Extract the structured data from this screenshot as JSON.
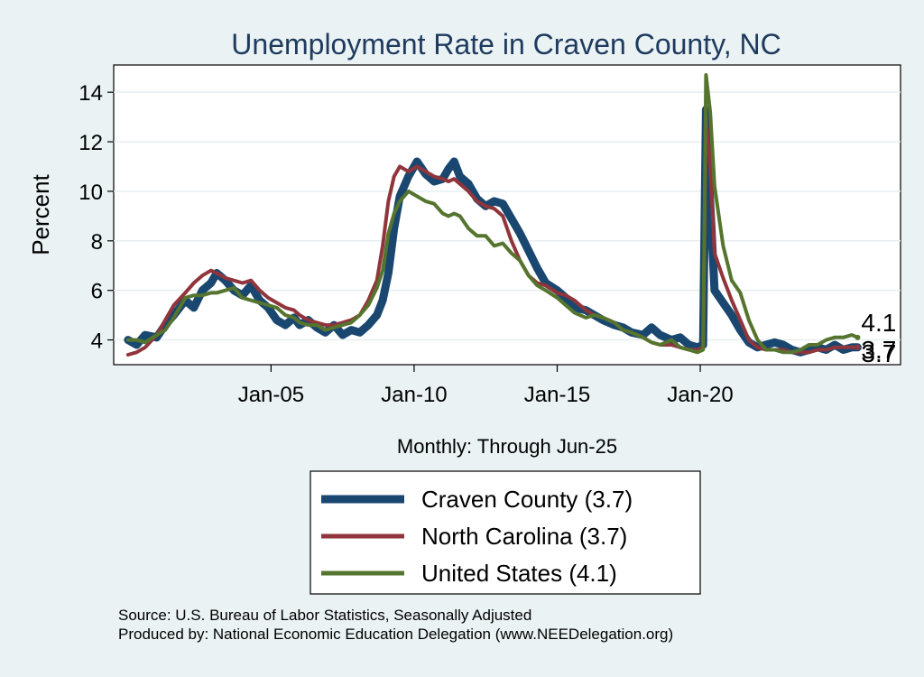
{
  "chart_data": {
    "type": "line",
    "title": "Unemployment Rate in Craven  County, NC",
    "xlabel": "Monthly: Through Jun-25",
    "ylabel": "Percent",
    "x_range": [
      2000.0,
      2025.5
    ],
    "xlim": [
      1999.5,
      2027.0
    ],
    "ylim": [
      3.0,
      15.1
    ],
    "x_ticks": [
      {
        "value": 2005,
        "label": "Jan-05"
      },
      {
        "value": 2010,
        "label": "Jan-10"
      },
      {
        "value": 2015,
        "label": "Jan-15"
      },
      {
        "value": 2020,
        "label": "Jan-20"
      }
    ],
    "y_ticks": [
      4,
      6,
      8,
      10,
      12,
      14
    ],
    "grid": true,
    "legend_position": "bottom",
    "series": [
      {
        "name": "Craven  County (3.7)",
        "color": "#1a476f",
        "width": 9,
        "end_label": "3.7",
        "points": [
          [
            2000.0,
            4.0
          ],
          [
            2000.3,
            3.8
          ],
          [
            2000.6,
            4.2
          ],
          [
            2001.0,
            4.1
          ],
          [
            2001.3,
            4.6
          ],
          [
            2001.6,
            5.0
          ],
          [
            2002.0,
            5.6
          ],
          [
            2002.3,
            5.3
          ],
          [
            2002.6,
            6.0
          ],
          [
            2002.9,
            6.3
          ],
          [
            2003.1,
            6.7
          ],
          [
            2003.4,
            6.4
          ],
          [
            2003.7,
            6.0
          ],
          [
            2004.0,
            5.8
          ],
          [
            2004.3,
            6.2
          ],
          [
            2004.6,
            5.6
          ],
          [
            2004.9,
            5.3
          ],
          [
            2005.2,
            4.8
          ],
          [
            2005.5,
            4.6
          ],
          [
            2005.8,
            4.9
          ],
          [
            2006.0,
            4.6
          ],
          [
            2006.3,
            4.8
          ],
          [
            2006.6,
            4.5
          ],
          [
            2006.9,
            4.3
          ],
          [
            2007.2,
            4.6
          ],
          [
            2007.5,
            4.2
          ],
          [
            2007.8,
            4.4
          ],
          [
            2008.1,
            4.3
          ],
          [
            2008.4,
            4.6
          ],
          [
            2008.7,
            5.0
          ],
          [
            2008.9,
            5.6
          ],
          [
            2009.1,
            6.7
          ],
          [
            2009.3,
            8.5
          ],
          [
            2009.5,
            9.8
          ],
          [
            2009.8,
            10.6
          ],
          [
            2010.1,
            11.2
          ],
          [
            2010.4,
            10.7
          ],
          [
            2010.7,
            10.4
          ],
          [
            2011.0,
            10.5
          ],
          [
            2011.2,
            10.9
          ],
          [
            2011.4,
            11.2
          ],
          [
            2011.6,
            10.6
          ],
          [
            2011.9,
            10.3
          ],
          [
            2012.2,
            9.7
          ],
          [
            2012.5,
            9.4
          ],
          [
            2012.8,
            9.6
          ],
          [
            2013.1,
            9.5
          ],
          [
            2013.4,
            8.9
          ],
          [
            2013.7,
            8.3
          ],
          [
            2014.0,
            7.6
          ],
          [
            2014.3,
            6.9
          ],
          [
            2014.6,
            6.3
          ],
          [
            2015.0,
            6.0
          ],
          [
            2015.3,
            5.7
          ],
          [
            2015.6,
            5.3
          ],
          [
            2016.0,
            5.2
          ],
          [
            2016.3,
            5.0
          ],
          [
            2016.6,
            4.8
          ],
          [
            2017.0,
            4.6
          ],
          [
            2017.3,
            4.5
          ],
          [
            2017.6,
            4.3
          ],
          [
            2018.0,
            4.2
          ],
          [
            2018.3,
            4.5
          ],
          [
            2018.6,
            4.2
          ],
          [
            2019.0,
            4.0
          ],
          [
            2019.3,
            4.1
          ],
          [
            2019.6,
            3.8
          ],
          [
            2019.9,
            3.7
          ],
          [
            2020.1,
            3.8
          ],
          [
            2020.2,
            13.3
          ],
          [
            2020.35,
            9.5
          ],
          [
            2020.5,
            6.0
          ],
          [
            2020.8,
            5.5
          ],
          [
            2021.1,
            5.0
          ],
          [
            2021.4,
            4.4
          ],
          [
            2021.7,
            3.9
          ],
          [
            2022.0,
            3.7
          ],
          [
            2022.3,
            3.8
          ],
          [
            2022.6,
            3.9
          ],
          [
            2022.9,
            3.8
          ],
          [
            2023.2,
            3.6
          ],
          [
            2023.5,
            3.5
          ],
          [
            2023.8,
            3.6
          ],
          [
            2024.1,
            3.7
          ],
          [
            2024.4,
            3.6
          ],
          [
            2024.7,
            3.8
          ],
          [
            2025.0,
            3.6
          ],
          [
            2025.3,
            3.7
          ],
          [
            2025.5,
            3.7
          ]
        ]
      },
      {
        "name": "North Carolina (3.7)",
        "color": "#90353b",
        "width": 4,
        "end_label": "3.7",
        "points": [
          [
            2000.0,
            3.4
          ],
          [
            2000.3,
            3.5
          ],
          [
            2000.6,
            3.7
          ],
          [
            2001.0,
            4.2
          ],
          [
            2001.3,
            4.8
          ],
          [
            2001.6,
            5.4
          ],
          [
            2002.0,
            5.9
          ],
          [
            2002.3,
            6.3
          ],
          [
            2002.6,
            6.6
          ],
          [
            2002.9,
            6.8
          ],
          [
            2003.1,
            6.7
          ],
          [
            2003.4,
            6.5
          ],
          [
            2003.7,
            6.4
          ],
          [
            2004.0,
            6.3
          ],
          [
            2004.3,
            6.4
          ],
          [
            2004.6,
            6.0
          ],
          [
            2004.9,
            5.7
          ],
          [
            2005.2,
            5.5
          ],
          [
            2005.5,
            5.3
          ],
          [
            2005.8,
            5.2
          ],
          [
            2006.0,
            5.0
          ],
          [
            2006.3,
            4.8
          ],
          [
            2006.6,
            4.7
          ],
          [
            2006.9,
            4.6
          ],
          [
            2007.2,
            4.6
          ],
          [
            2007.5,
            4.7
          ],
          [
            2007.8,
            4.8
          ],
          [
            2008.1,
            5.0
          ],
          [
            2008.4,
            5.6
          ],
          [
            2008.7,
            6.4
          ],
          [
            2008.9,
            7.8
          ],
          [
            2009.1,
            9.6
          ],
          [
            2009.3,
            10.6
          ],
          [
            2009.5,
            11.0
          ],
          [
            2009.8,
            10.8
          ],
          [
            2010.1,
            11.0
          ],
          [
            2010.4,
            10.8
          ],
          [
            2010.7,
            10.6
          ],
          [
            2011.0,
            10.5
          ],
          [
            2011.2,
            10.4
          ],
          [
            2011.4,
            10.5
          ],
          [
            2011.6,
            10.3
          ],
          [
            2011.9,
            10.0
          ],
          [
            2012.2,
            9.6
          ],
          [
            2012.5,
            9.4
          ],
          [
            2012.8,
            9.3
          ],
          [
            2013.1,
            9.0
          ],
          [
            2013.4,
            8.0
          ],
          [
            2013.7,
            7.2
          ],
          [
            2014.0,
            6.6
          ],
          [
            2014.3,
            6.3
          ],
          [
            2014.6,
            6.2
          ],
          [
            2015.0,
            5.9
          ],
          [
            2015.3,
            5.8
          ],
          [
            2015.6,
            5.6
          ],
          [
            2016.0,
            5.2
          ],
          [
            2016.3,
            5.0
          ],
          [
            2016.6,
            4.9
          ],
          [
            2017.0,
            4.7
          ],
          [
            2017.3,
            4.4
          ],
          [
            2017.6,
            4.3
          ],
          [
            2018.0,
            4.1
          ],
          [
            2018.3,
            3.9
          ],
          [
            2018.6,
            3.8
          ],
          [
            2019.0,
            3.8
          ],
          [
            2019.3,
            3.7
          ],
          [
            2019.6,
            3.6
          ],
          [
            2019.9,
            3.6
          ],
          [
            2020.1,
            3.7
          ],
          [
            2020.2,
            13.0
          ],
          [
            2020.35,
            11.0
          ],
          [
            2020.5,
            7.5
          ],
          [
            2020.8,
            6.5
          ],
          [
            2021.1,
            5.6
          ],
          [
            2021.4,
            4.8
          ],
          [
            2021.7,
            4.0
          ],
          [
            2022.0,
            3.7
          ],
          [
            2022.3,
            3.6
          ],
          [
            2022.6,
            3.6
          ],
          [
            2022.9,
            3.6
          ],
          [
            2023.2,
            3.5
          ],
          [
            2023.5,
            3.5
          ],
          [
            2023.8,
            3.5
          ],
          [
            2024.1,
            3.6
          ],
          [
            2024.4,
            3.6
          ],
          [
            2024.7,
            3.7
          ],
          [
            2025.0,
            3.7
          ],
          [
            2025.3,
            3.7
          ],
          [
            2025.5,
            3.7
          ]
        ]
      },
      {
        "name": "United States (4.1)",
        "color": "#55752f",
        "width": 4,
        "end_label": "4.1",
        "points": [
          [
            2000.0,
            4.0
          ],
          [
            2000.3,
            4.0
          ],
          [
            2000.6,
            3.9
          ],
          [
            2001.0,
            4.2
          ],
          [
            2001.3,
            4.4
          ],
          [
            2001.6,
            4.9
          ],
          [
            2002.0,
            5.7
          ],
          [
            2002.3,
            5.8
          ],
          [
            2002.6,
            5.8
          ],
          [
            2002.9,
            5.9
          ],
          [
            2003.1,
            5.9
          ],
          [
            2003.4,
            6.0
          ],
          [
            2003.7,
            6.1
          ],
          [
            2004.0,
            5.7
          ],
          [
            2004.3,
            5.6
          ],
          [
            2004.6,
            5.5
          ],
          [
            2004.9,
            5.4
          ],
          [
            2005.2,
            5.3
          ],
          [
            2005.5,
            5.0
          ],
          [
            2005.8,
            4.9
          ],
          [
            2006.0,
            4.7
          ],
          [
            2006.3,
            4.6
          ],
          [
            2006.6,
            4.6
          ],
          [
            2006.9,
            4.4
          ],
          [
            2007.2,
            4.5
          ],
          [
            2007.5,
            4.6
          ],
          [
            2007.8,
            4.7
          ],
          [
            2008.1,
            5.0
          ],
          [
            2008.4,
            5.4
          ],
          [
            2008.7,
            6.1
          ],
          [
            2008.9,
            6.8
          ],
          [
            2009.1,
            8.3
          ],
          [
            2009.3,
            9.1
          ],
          [
            2009.5,
            9.6
          ],
          [
            2009.8,
            10.0
          ],
          [
            2010.1,
            9.8
          ],
          [
            2010.4,
            9.6
          ],
          [
            2010.7,
            9.5
          ],
          [
            2011.0,
            9.1
          ],
          [
            2011.2,
            9.0
          ],
          [
            2011.4,
            9.1
          ],
          [
            2011.6,
            9.0
          ],
          [
            2011.9,
            8.5
          ],
          [
            2012.2,
            8.2
          ],
          [
            2012.5,
            8.2
          ],
          [
            2012.8,
            7.8
          ],
          [
            2013.1,
            7.9
          ],
          [
            2013.4,
            7.5
          ],
          [
            2013.7,
            7.2
          ],
          [
            2014.0,
            6.6
          ],
          [
            2014.3,
            6.2
          ],
          [
            2014.6,
            6.0
          ],
          [
            2015.0,
            5.7
          ],
          [
            2015.3,
            5.4
          ],
          [
            2015.6,
            5.1
          ],
          [
            2016.0,
            4.9
          ],
          [
            2016.3,
            5.0
          ],
          [
            2016.6,
            4.9
          ],
          [
            2017.0,
            4.7
          ],
          [
            2017.3,
            4.4
          ],
          [
            2017.6,
            4.3
          ],
          [
            2018.0,
            4.1
          ],
          [
            2018.3,
            3.9
          ],
          [
            2018.6,
            3.8
          ],
          [
            2019.0,
            4.0
          ],
          [
            2019.3,
            3.7
          ],
          [
            2019.6,
            3.6
          ],
          [
            2019.9,
            3.5
          ],
          [
            2020.1,
            3.6
          ],
          [
            2020.2,
            14.7
          ],
          [
            2020.35,
            13.2
          ],
          [
            2020.5,
            10.2
          ],
          [
            2020.8,
            7.8
          ],
          [
            2021.1,
            6.4
          ],
          [
            2021.4,
            5.9
          ],
          [
            2021.7,
            4.8
          ],
          [
            2022.0,
            4.0
          ],
          [
            2022.3,
            3.6
          ],
          [
            2022.6,
            3.6
          ],
          [
            2022.9,
            3.5
          ],
          [
            2023.2,
            3.5
          ],
          [
            2023.5,
            3.6
          ],
          [
            2023.8,
            3.8
          ],
          [
            2024.1,
            3.8
          ],
          [
            2024.4,
            4.0
          ],
          [
            2024.7,
            4.1
          ],
          [
            2025.0,
            4.1
          ],
          [
            2025.3,
            4.2
          ],
          [
            2025.5,
            4.1
          ]
        ]
      }
    ]
  },
  "footer": {
    "source": "Source: U.S. Bureau of Labor Statistics, Seasonally Adjusted",
    "produced_by": "Produced by: National Economic Education Delegation (www.NEEDelegation.org)"
  }
}
